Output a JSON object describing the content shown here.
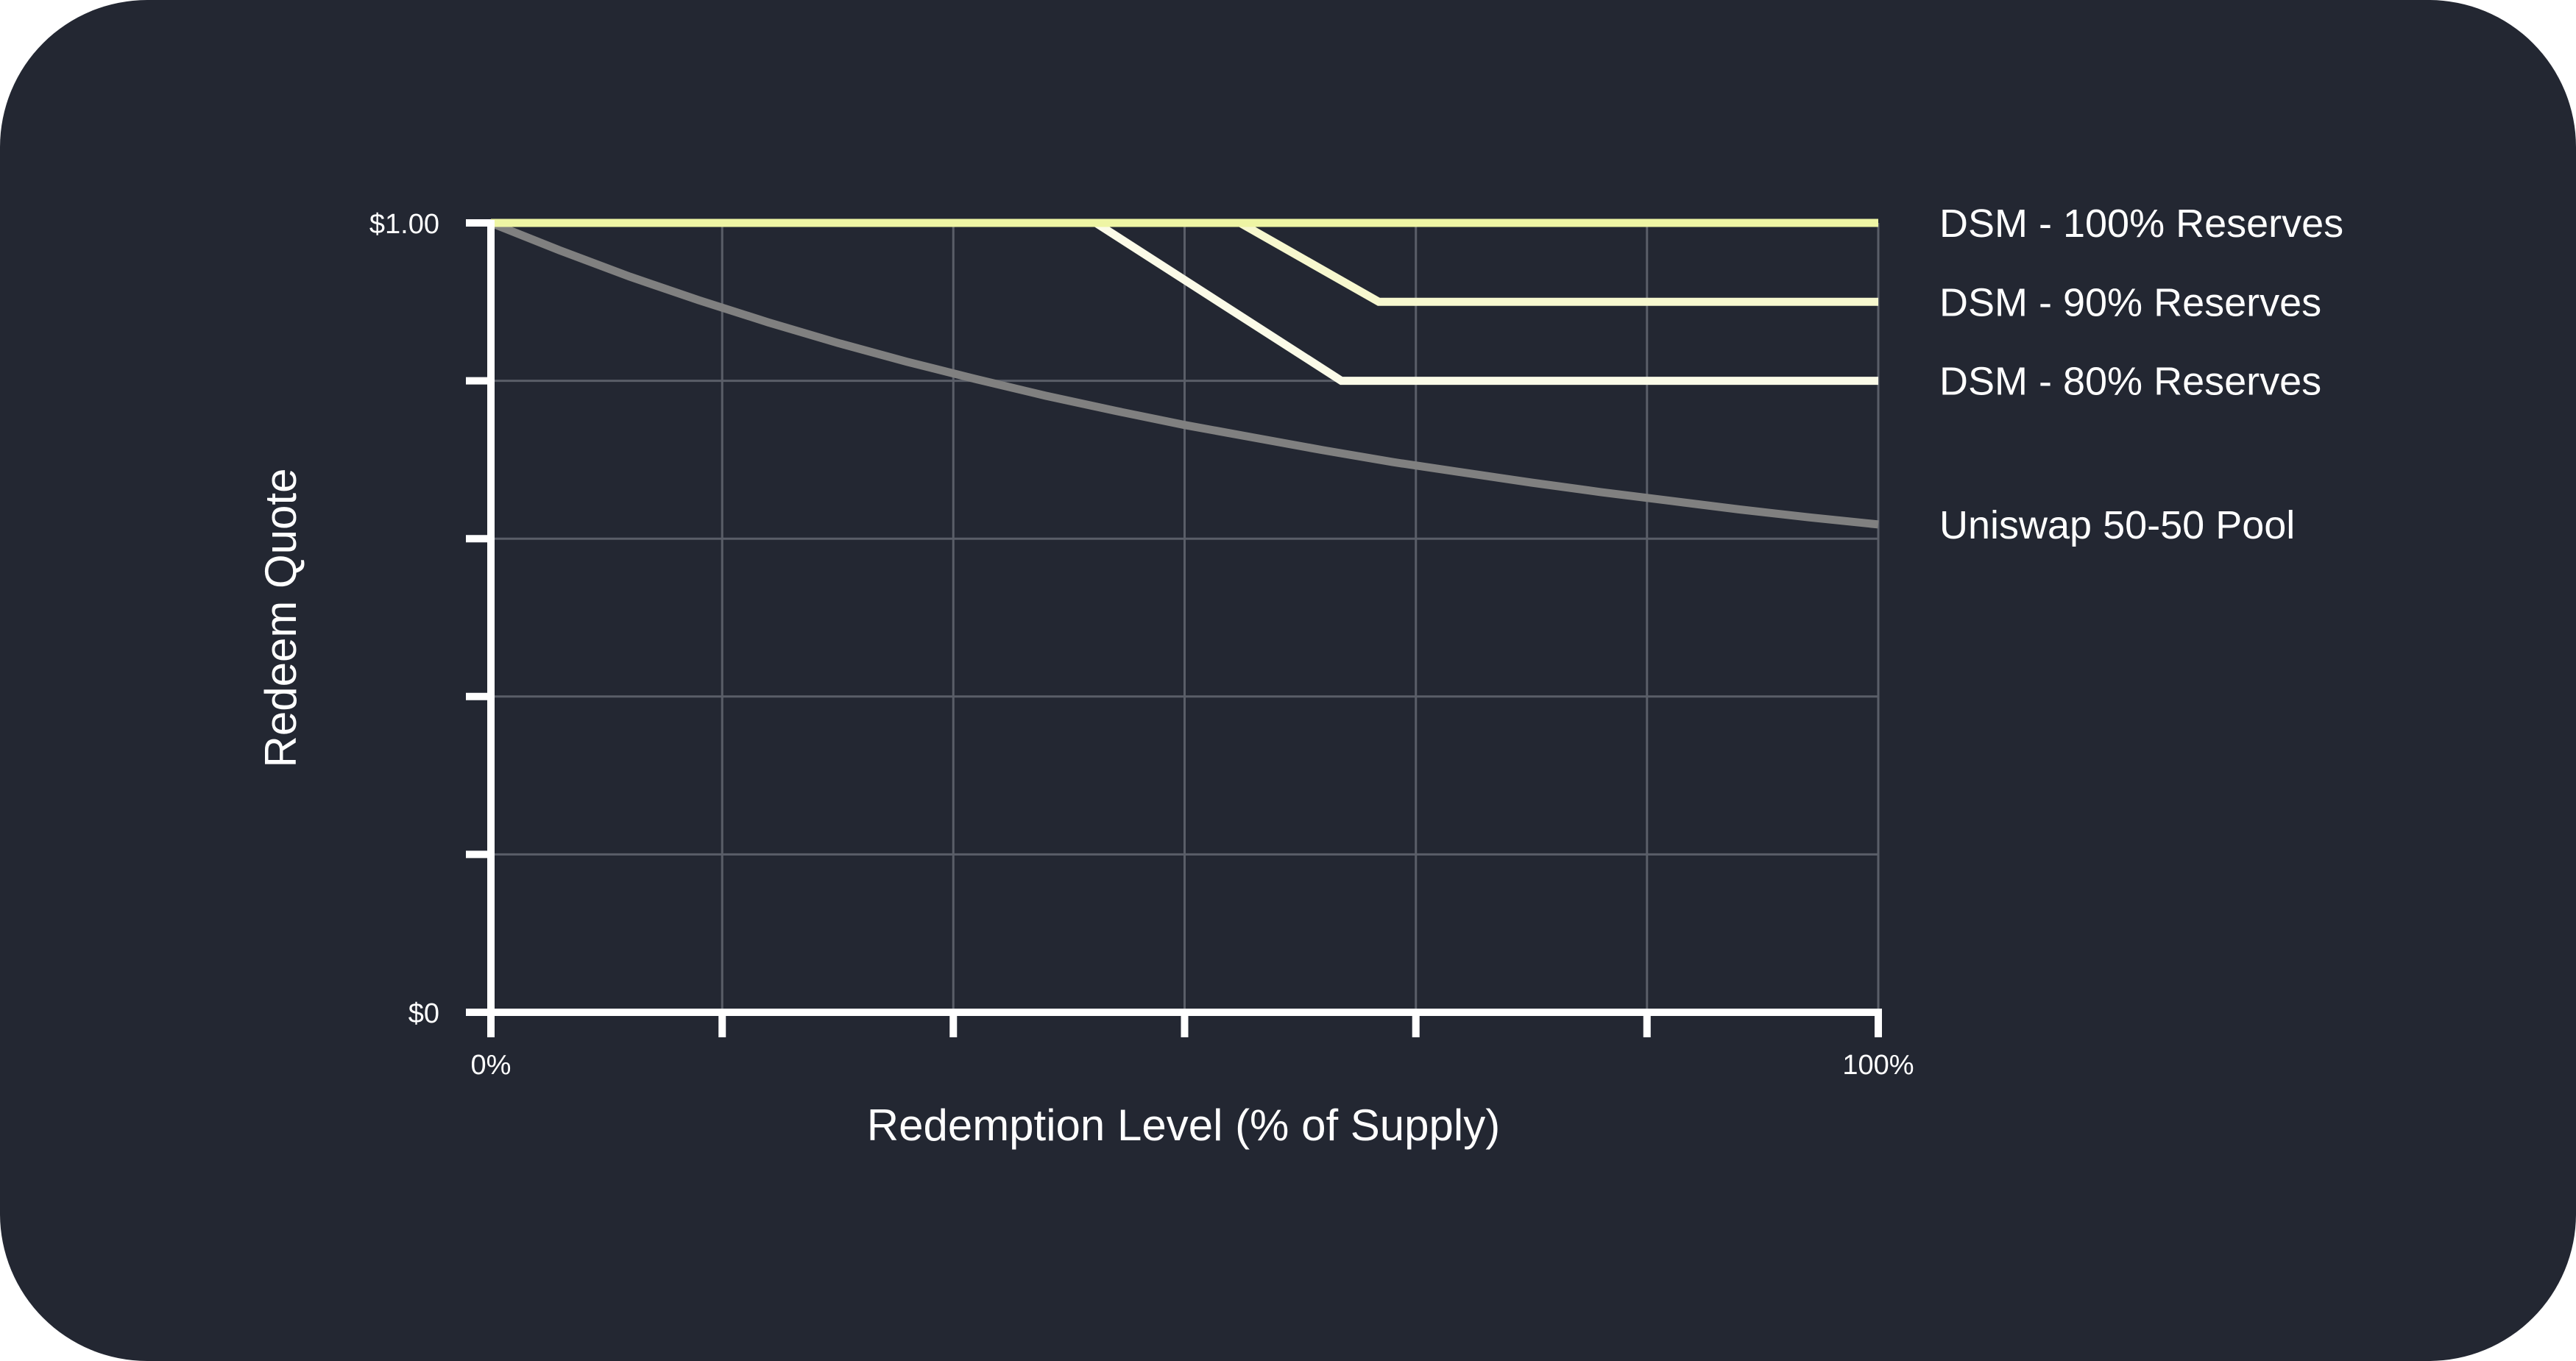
{
  "chart_data": {
    "type": "line",
    "title": "",
    "xlabel": "Redemption Level (% of Supply)",
    "ylabel": "Redeem Quote",
    "xlim": [
      0,
      100
    ],
    "ylim": [
      0,
      1
    ],
    "grid": true,
    "legend_placement": "right",
    "x_tick_labels": [
      {
        "value": 0,
        "label": "0%"
      },
      {
        "value": 100,
        "label": "100%"
      }
    ],
    "y_tick_labels": [
      {
        "value": 1,
        "label": "$1.00"
      },
      {
        "value": 0,
        "label": "$0"
      }
    ],
    "x_ticks": [
      0,
      16.67,
      33.33,
      50,
      66.67,
      83.33,
      100
    ],
    "y_ticks": [
      0,
      0.2,
      0.4,
      0.6,
      0.8,
      1
    ],
    "series": [
      {
        "name": "DSM - 100% Reserves",
        "color": "#eef5a4",
        "points": [
          [
            0,
            1
          ],
          [
            100,
            1
          ]
        ]
      },
      {
        "name": "DSM - 90% Reserves",
        "color": "#f7f8cf",
        "points": [
          [
            0,
            1
          ],
          [
            54,
            1
          ],
          [
            64,
            0.9
          ],
          [
            100,
            0.9
          ]
        ]
      },
      {
        "name": "DSM - 80% Reserves",
        "color": "#fbfbe8",
        "points": [
          [
            0,
            1
          ],
          [
            43.6,
            1
          ],
          [
            61.3,
            0.8
          ],
          [
            100,
            0.8
          ]
        ]
      },
      {
        "name": "Uniswap 50-50 Pool",
        "color": "#808080",
        "points": [
          [
            0,
            1
          ],
          [
            5,
            0.965
          ],
          [
            10,
            0.932
          ],
          [
            15,
            0.902
          ],
          [
            20,
            0.874
          ],
          [
            25,
            0.848
          ],
          [
            30,
            0.824
          ],
          [
            35,
            0.802
          ],
          [
            40,
            0.781
          ],
          [
            45,
            0.762
          ],
          [
            50,
            0.744
          ],
          [
            55,
            0.728
          ],
          [
            60,
            0.712
          ],
          [
            65,
            0.697
          ],
          [
            70,
            0.684
          ],
          [
            75,
            0.671
          ],
          [
            80,
            0.659
          ],
          [
            85,
            0.648
          ],
          [
            90,
            0.637
          ],
          [
            95,
            0.627
          ],
          [
            100,
            0.618
          ]
        ]
      }
    ]
  },
  "colors": {
    "background": "#232732",
    "axis": "#ffffff",
    "grid": "#5a5e68"
  }
}
